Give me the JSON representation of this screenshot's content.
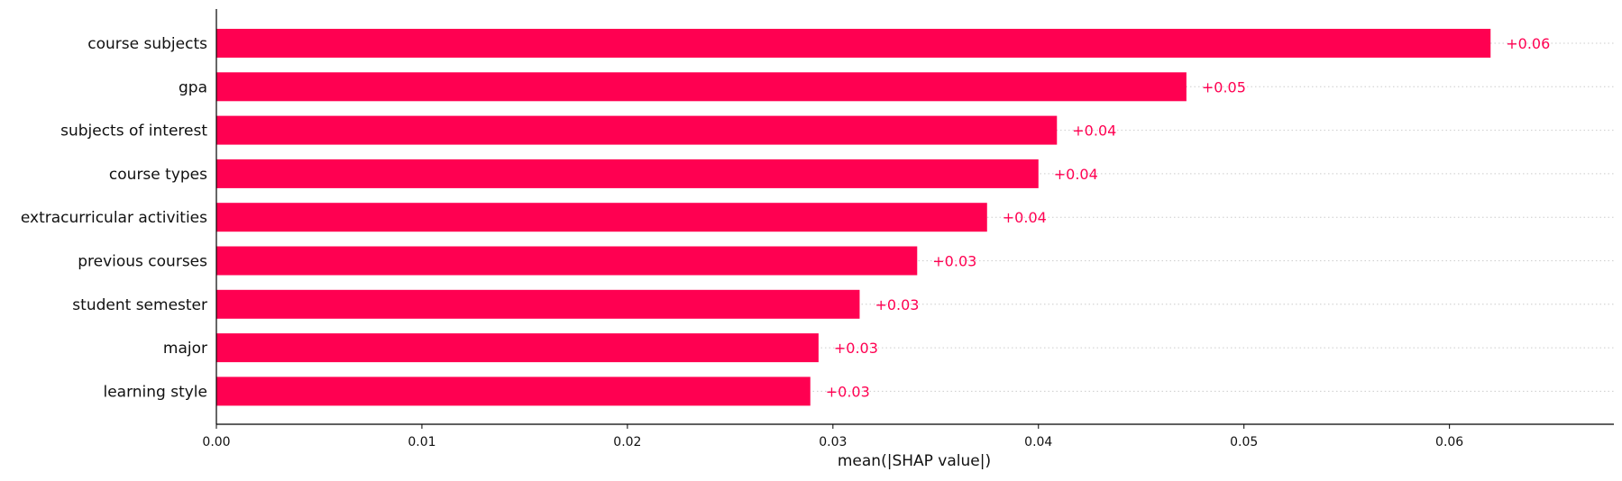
{
  "chart_data": {
    "type": "bar",
    "orientation": "horizontal",
    "title": "",
    "xlabel": "mean(|SHAP value|)",
    "ylabel": "",
    "xlim": [
      0,
      0.068
    ],
    "xticks": [
      0.0,
      0.01,
      0.02,
      0.03,
      0.04,
      0.05,
      0.06
    ],
    "xtick_labels": [
      "0.00",
      "0.01",
      "0.02",
      "0.03",
      "0.04",
      "0.05",
      "0.06"
    ],
    "categories": [
      "course subjects",
      "gpa",
      "subjects of interest",
      "course types",
      "extracurricular activities",
      "previous courses",
      "student semester",
      "major",
      "learning style"
    ],
    "values": [
      0.062,
      0.0472,
      0.0409,
      0.04,
      0.0375,
      0.0341,
      0.0313,
      0.0293,
      0.0289
    ],
    "value_labels": [
      "+0.06",
      "+0.05",
      "+0.04",
      "+0.04",
      "+0.04",
      "+0.03",
      "+0.03",
      "+0.03",
      "+0.03"
    ],
    "grid": "dotted horizontal guide lines per row",
    "colors": {
      "bar": "#ff0051",
      "value_label": "#ff0051",
      "axis": "#000000",
      "guide": "#cccccc"
    }
  }
}
